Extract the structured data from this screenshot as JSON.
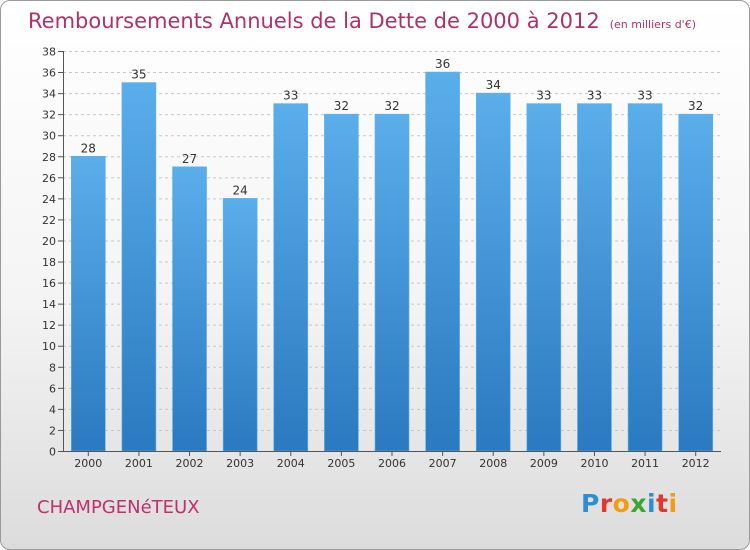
{
  "chart_data": {
    "type": "bar",
    "title": "Remboursements Annuels de la Dette de 2000 à 2012",
    "unit_note": "(en milliers d'€)",
    "categories": [
      "2000",
      "2001",
      "2002",
      "2003",
      "2004",
      "2005",
      "2006",
      "2007",
      "2008",
      "2009",
      "2010",
      "2011",
      "2012"
    ],
    "values": [
      28,
      35,
      27,
      24,
      33,
      32,
      32,
      36,
      34,
      33,
      33,
      33,
      32
    ],
    "ylim": [
      0,
      38
    ],
    "yticks": [
      0,
      2,
      4,
      6,
      8,
      10,
      12,
      14,
      16,
      18,
      20,
      22,
      24,
      26,
      28,
      30,
      32,
      34,
      36,
      38
    ],
    "grid": true,
    "bar_color": "#3c8fd6"
  },
  "commune": "CHAMPGENéTEUX",
  "logo": {
    "text": "Proxiti",
    "letters": [
      {
        "ch": "P",
        "color": "#2e8fd0"
      },
      {
        "ch": "r",
        "color": "#e0392b"
      },
      {
        "ch": "o",
        "color": "#f39c12"
      },
      {
        "ch": "x",
        "color": "#3aa535"
      },
      {
        "ch": "i",
        "color": "#2e8fd0"
      },
      {
        "ch": "t",
        "color": "#e0392b"
      },
      {
        "ch": "i",
        "color": "#f39c12"
      }
    ]
  }
}
